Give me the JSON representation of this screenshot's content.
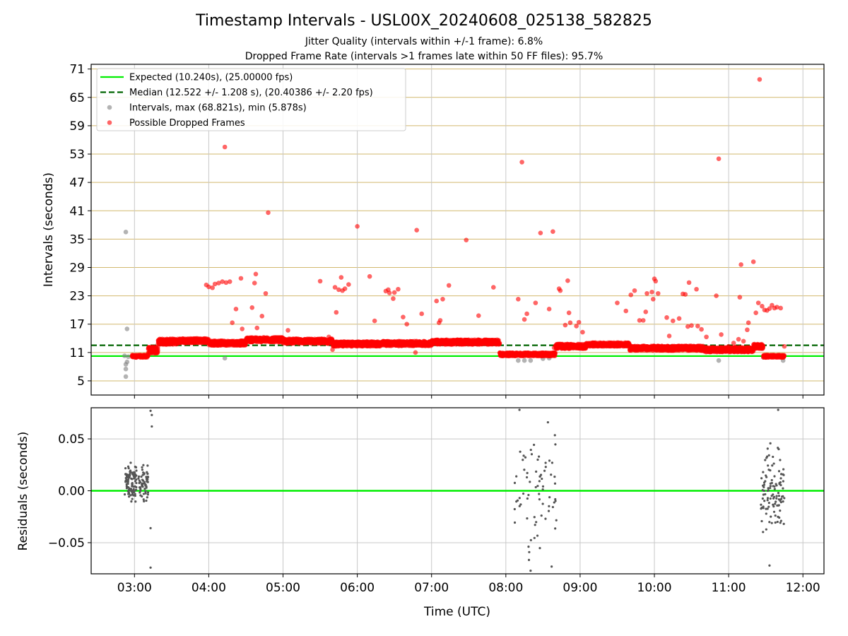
{
  "chart_data": [
    {
      "type": "scatter",
      "title": "Timestamp Intervals - USL00X_20240608_025138_582825",
      "subtitle_1": "Jitter Quality (intervals within +/-1 frame): 6.8%",
      "subtitle_2": "Dropped Frame Rate (intervals >1 frames late within 50 FF files): 95.7%",
      "ylabel": "Intervals (seconds)",
      "xlim": [
        "02:25",
        "12:17"
      ],
      "ylim": [
        2,
        72
      ],
      "yticks": [
        5,
        11,
        17,
        23,
        29,
        35,
        41,
        47,
        53,
        59,
        65,
        71
      ],
      "xticks": [
        "03:00",
        "04:00",
        "05:00",
        "06:00",
        "07:00",
        "08:00",
        "09:00",
        "10:00",
        "11:00",
        "12:00"
      ],
      "grid": true,
      "legend_position": "upper-left",
      "legend": [
        {
          "label": "Expected (10.240s), (25.00000 fps)",
          "kind": "line",
          "color": "#00ee00"
        },
        {
          "label": "Median (12.522 +/- 1.208 s), (20.40386 +/- 2.20 fps)",
          "kind": "dashed",
          "color": "#006400"
        },
        {
          "label": "Intervals, max (68.821s), min (5.878s)",
          "kind": "dot",
          "color": "#808080"
        },
        {
          "label": "Possible Dropped Frames",
          "kind": "dot",
          "color": "#ff0000"
        }
      ],
      "expected_interval": 10.24,
      "median_interval": 12.522,
      "baseline_segments": [
        {
          "start": "02:58",
          "end": "03:11",
          "value": 10.2,
          "jitter": 0.25
        },
        {
          "start": "03:11",
          "end": "03:19",
          "value": 11.5,
          "jitter": 0.7
        },
        {
          "start": "03:19",
          "end": "03:35",
          "value": 13.3,
          "jitter": 0.6
        },
        {
          "start": "03:35",
          "end": "04:00",
          "value": 13.5,
          "jitter": 0.5
        },
        {
          "start": "04:00",
          "end": "04:30",
          "value": 13.0,
          "jitter": 0.5
        },
        {
          "start": "04:30",
          "end": "05:00",
          "value": 13.7,
          "jitter": 0.5
        },
        {
          "start": "05:00",
          "end": "05:40",
          "value": 13.4,
          "jitter": 0.5
        },
        {
          "start": "05:40",
          "end": "06:20",
          "value": 12.8,
          "jitter": 0.5
        },
        {
          "start": "06:20",
          "end": "07:00",
          "value": 12.9,
          "jitter": 0.5
        },
        {
          "start": "07:00",
          "end": "07:55",
          "value": 13.2,
          "jitter": 0.5
        },
        {
          "start": "07:55",
          "end": "08:40",
          "value": 10.6,
          "jitter": 0.35
        },
        {
          "start": "08:40",
          "end": "09:05",
          "value": 12.3,
          "jitter": 0.5
        },
        {
          "start": "09:05",
          "end": "09:40",
          "value": 12.7,
          "jitter": 0.4
        },
        {
          "start": "09:40",
          "end": "10:40",
          "value": 11.9,
          "jitter": 0.5
        },
        {
          "start": "10:40",
          "end": "11:20",
          "value": 11.6,
          "jitter": 0.5
        },
        {
          "start": "11:20",
          "end": "11:28",
          "value": 12.3,
          "jitter": 0.5
        },
        {
          "start": "11:28",
          "end": "11:45",
          "value": 10.2,
          "jitter": 0.25
        }
      ],
      "intervals_gray": [
        {
          "x": "02:53",
          "y": 36.5
        },
        {
          "x": "02:54",
          "y": 16.0
        },
        {
          "x": "02:53",
          "y": 8.5
        },
        {
          "x": "02:53",
          "y": 7.5
        },
        {
          "x": "02:53",
          "y": 5.9
        },
        {
          "x": "02:54",
          "y": 9.0
        },
        {
          "x": "02:52",
          "y": 10.3
        },
        {
          "x": "02:55",
          "y": 10.1
        },
        {
          "x": "04:13",
          "y": 9.8
        },
        {
          "x": "08:10",
          "y": 9.3
        },
        {
          "x": "08:15",
          "y": 9.3
        },
        {
          "x": "08:20",
          "y": 9.3
        },
        {
          "x": "08:30",
          "y": 9.7
        },
        {
          "x": "08:35",
          "y": 9.8
        },
        {
          "x": "10:52",
          "y": 9.3
        },
        {
          "x": "11:28",
          "y": 10.0
        },
        {
          "x": "11:32",
          "y": 10.1
        },
        {
          "x": "11:44",
          "y": 9.3
        }
      ],
      "dropped_outliers": [
        {
          "x": "04:13",
          "y": 54.5
        },
        {
          "x": "04:48",
          "y": 40.6
        },
        {
          "x": "06:00",
          "y": 37.7
        },
        {
          "x": "06:48",
          "y": 36.9
        },
        {
          "x": "07:28",
          "y": 34.8
        },
        {
          "x": "08:13",
          "y": 51.3
        },
        {
          "x": "08:28",
          "y": 36.3
        },
        {
          "x": "08:38",
          "y": 36.6
        },
        {
          "x": "10:52",
          "y": 52.0
        },
        {
          "x": "11:25",
          "y": 68.8
        },
        {
          "x": "03:58",
          "y": 25.3
        },
        {
          "x": "04:00",
          "y": 24.9
        },
        {
          "x": "04:03",
          "y": 24.7
        },
        {
          "x": "04:05",
          "y": 25.5
        },
        {
          "x": "04:08",
          "y": 25.7
        },
        {
          "x": "04:11",
          "y": 26.0
        },
        {
          "x": "04:14",
          "y": 25.8
        },
        {
          "x": "04:17",
          "y": 26.0
        },
        {
          "x": "04:19",
          "y": 17.3
        },
        {
          "x": "04:22",
          "y": 20.2
        },
        {
          "x": "04:26",
          "y": 26.7
        },
        {
          "x": "04:27",
          "y": 16.0
        },
        {
          "x": "04:35",
          "y": 20.5
        },
        {
          "x": "04:37",
          "y": 25.7
        },
        {
          "x": "04:38",
          "y": 27.6
        },
        {
          "x": "04:39",
          "y": 16.2
        },
        {
          "x": "04:43",
          "y": 18.7
        },
        {
          "x": "04:46",
          "y": 23.5
        },
        {
          "x": "05:04",
          "y": 15.7
        },
        {
          "x": "05:30",
          "y": 26.1
        },
        {
          "x": "05:37",
          "y": 14.3
        },
        {
          "x": "05:40",
          "y": 11.6
        },
        {
          "x": "05:42",
          "y": 24.8
        },
        {
          "x": "05:43",
          "y": 19.5
        },
        {
          "x": "05:45",
          "y": 24.3
        },
        {
          "x": "05:47",
          "y": 26.9
        },
        {
          "x": "05:48",
          "y": 24.1
        },
        {
          "x": "05:50",
          "y": 24.5
        },
        {
          "x": "05:53",
          "y": 25.4
        },
        {
          "x": "06:10",
          "y": 27.1
        },
        {
          "x": "06:14",
          "y": 17.7
        },
        {
          "x": "06:23",
          "y": 24.0
        },
        {
          "x": "06:25",
          "y": 24.3
        },
        {
          "x": "06:26",
          "y": 23.6
        },
        {
          "x": "06:29",
          "y": 22.4
        },
        {
          "x": "06:30",
          "y": 23.7
        },
        {
          "x": "06:33",
          "y": 24.4
        },
        {
          "x": "06:37",
          "y": 18.5
        },
        {
          "x": "06:40",
          "y": 17.0
        },
        {
          "x": "06:47",
          "y": 11.0
        },
        {
          "x": "06:52",
          "y": 19.2
        },
        {
          "x": "07:04",
          "y": 21.9
        },
        {
          "x": "07:06",
          "y": 17.3
        },
        {
          "x": "07:07",
          "y": 17.8
        },
        {
          "x": "07:09",
          "y": 22.3
        },
        {
          "x": "07:14",
          "y": 25.2
        },
        {
          "x": "07:38",
          "y": 18.8
        },
        {
          "x": "07:50",
          "y": 24.8
        },
        {
          "x": "08:10",
          "y": 22.3
        },
        {
          "x": "08:15",
          "y": 18.0
        },
        {
          "x": "08:17",
          "y": 19.2
        },
        {
          "x": "08:24",
          "y": 21.5
        },
        {
          "x": "08:35",
          "y": 20.2
        },
        {
          "x": "08:39",
          "y": 12.0
        },
        {
          "x": "08:43",
          "y": 24.5
        },
        {
          "x": "08:44",
          "y": 24.1
        },
        {
          "x": "08:48",
          "y": 16.8
        },
        {
          "x": "08:50",
          "y": 26.2
        },
        {
          "x": "08:51",
          "y": 19.4
        },
        {
          "x": "08:52",
          "y": 17.3
        },
        {
          "x": "08:57",
          "y": 16.6
        },
        {
          "x": "08:59",
          "y": 17.4
        },
        {
          "x": "09:02",
          "y": 15.3
        },
        {
          "x": "09:30",
          "y": 21.5
        },
        {
          "x": "09:37",
          "y": 19.8
        },
        {
          "x": "09:41",
          "y": 23.2
        },
        {
          "x": "09:44",
          "y": 24.1
        },
        {
          "x": "09:48",
          "y": 17.8
        },
        {
          "x": "09:51",
          "y": 17.8
        },
        {
          "x": "09:53",
          "y": 19.6
        },
        {
          "x": "09:54",
          "y": 23.5
        },
        {
          "x": "09:58",
          "y": 23.8
        },
        {
          "x": "09:59",
          "y": 22.3
        },
        {
          "x": "10:00",
          "y": 26.6
        },
        {
          "x": "10:01",
          "y": 26.1
        },
        {
          "x": "10:03",
          "y": 23.5
        },
        {
          "x": "10:10",
          "y": 18.4
        },
        {
          "x": "10:12",
          "y": 14.5
        },
        {
          "x": "10:15",
          "y": 17.7
        },
        {
          "x": "10:20",
          "y": 18.2
        },
        {
          "x": "10:23",
          "y": 23.4
        },
        {
          "x": "10:25",
          "y": 23.3
        },
        {
          "x": "10:27",
          "y": 16.5
        },
        {
          "x": "10:28",
          "y": 25.8
        },
        {
          "x": "10:30",
          "y": 16.7
        },
        {
          "x": "10:34",
          "y": 24.4
        },
        {
          "x": "10:35",
          "y": 16.6
        },
        {
          "x": "10:38",
          "y": 15.9
        },
        {
          "x": "10:42",
          "y": 14.3
        },
        {
          "x": "10:50",
          "y": 23.0
        },
        {
          "x": "10:54",
          "y": 14.8
        },
        {
          "x": "10:58",
          "y": 11.8
        },
        {
          "x": "11:00",
          "y": 12.3
        },
        {
          "x": "11:04",
          "y": 13.0
        },
        {
          "x": "11:08",
          "y": 13.8
        },
        {
          "x": "11:09",
          "y": 22.7
        },
        {
          "x": "11:10",
          "y": 29.6
        },
        {
          "x": "11:12",
          "y": 13.4
        },
        {
          "x": "11:15",
          "y": 15.8
        },
        {
          "x": "11:16",
          "y": 17.3
        },
        {
          "x": "11:20",
          "y": 30.2
        },
        {
          "x": "11:22",
          "y": 19.4
        },
        {
          "x": "11:24",
          "y": 21.5
        },
        {
          "x": "11:27",
          "y": 20.8
        },
        {
          "x": "11:29",
          "y": 20.0
        },
        {
          "x": "11:31",
          "y": 19.9
        },
        {
          "x": "11:33",
          "y": 20.3
        },
        {
          "x": "11:35",
          "y": 21.0
        },
        {
          "x": "11:37",
          "y": 20.4
        },
        {
          "x": "11:39",
          "y": 20.6
        },
        {
          "x": "11:42",
          "y": 20.4
        },
        {
          "x": "11:45",
          "y": 12.3
        }
      ]
    },
    {
      "type": "scatter",
      "ylabel": "Residuals (seconds)",
      "xlabel": "Time (UTC)",
      "xlim": [
        "02:25",
        "12:17"
      ],
      "ylim": [
        -0.08,
        0.08
      ],
      "yticks": [
        0.05,
        0.0,
        -0.05
      ],
      "ytick_labels": [
        "0.05",
        "0.00",
        "−0.05"
      ],
      "xticks": [
        "03:00",
        "04:00",
        "05:00",
        "06:00",
        "07:00",
        "08:00",
        "09:00",
        "10:00",
        "11:00",
        "12:00"
      ],
      "grid": true,
      "zero_line_color": "#00ee00",
      "residual_clusters": [
        {
          "start": "02:52",
          "end": "03:11",
          "count": 160,
          "spread": 0.022,
          "center": 0.008
        },
        {
          "start": "08:07",
          "end": "08:41",
          "count": 70,
          "spread": 0.055,
          "center": 0.0
        },
        {
          "start": "11:26",
          "end": "11:45",
          "count": 110,
          "spread": 0.04,
          "center": 0.0
        }
      ],
      "residual_extremes": [
        {
          "x": "03:13",
          "y": 0.077
        },
        {
          "x": "03:14",
          "y": 0.073
        },
        {
          "x": "03:14",
          "y": 0.062
        },
        {
          "x": "03:13",
          "y": -0.036
        },
        {
          "x": "03:13",
          "y": -0.074
        },
        {
          "x": "08:11",
          "y": 0.078
        },
        {
          "x": "08:20",
          "y": -0.077
        },
        {
          "x": "08:34",
          "y": 0.066
        },
        {
          "x": "08:37",
          "y": -0.073
        },
        {
          "x": "11:40",
          "y": 0.078
        },
        {
          "x": "11:33",
          "y": -0.072
        }
      ]
    }
  ]
}
